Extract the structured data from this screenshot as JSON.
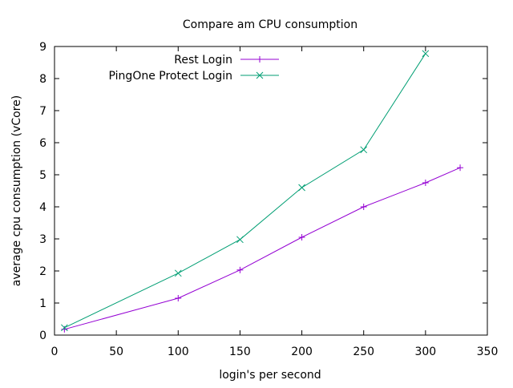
{
  "chart_data": {
    "type": "line",
    "title": "Compare am CPU consumption",
    "xlabel": "login's per second",
    "ylabel": "average cpu consumption (vCore)",
    "xlim": [
      0,
      350
    ],
    "ylim": [
      0,
      9
    ],
    "xticks": [
      0,
      50,
      100,
      150,
      200,
      250,
      300,
      350
    ],
    "yticks": [
      0,
      1,
      2,
      3,
      4,
      5,
      6,
      7,
      8,
      9
    ],
    "grid": false,
    "legend_position": "top-left",
    "series": [
      {
        "name": "Rest Login",
        "color": "#9400d3",
        "marker": "plus",
        "x": [
          8,
          100,
          150,
          200,
          250,
          300,
          328
        ],
        "y": [
          0.18,
          1.15,
          2.03,
          3.05,
          4.0,
          4.75,
          5.22
        ]
      },
      {
        "name": "PingOne Protect Login",
        "color": "#009e73",
        "marker": "cross",
        "x": [
          8,
          100,
          150,
          200,
          250,
          300
        ],
        "y": [
          0.23,
          1.93,
          2.98,
          4.6,
          5.78,
          8.78
        ]
      }
    ]
  }
}
